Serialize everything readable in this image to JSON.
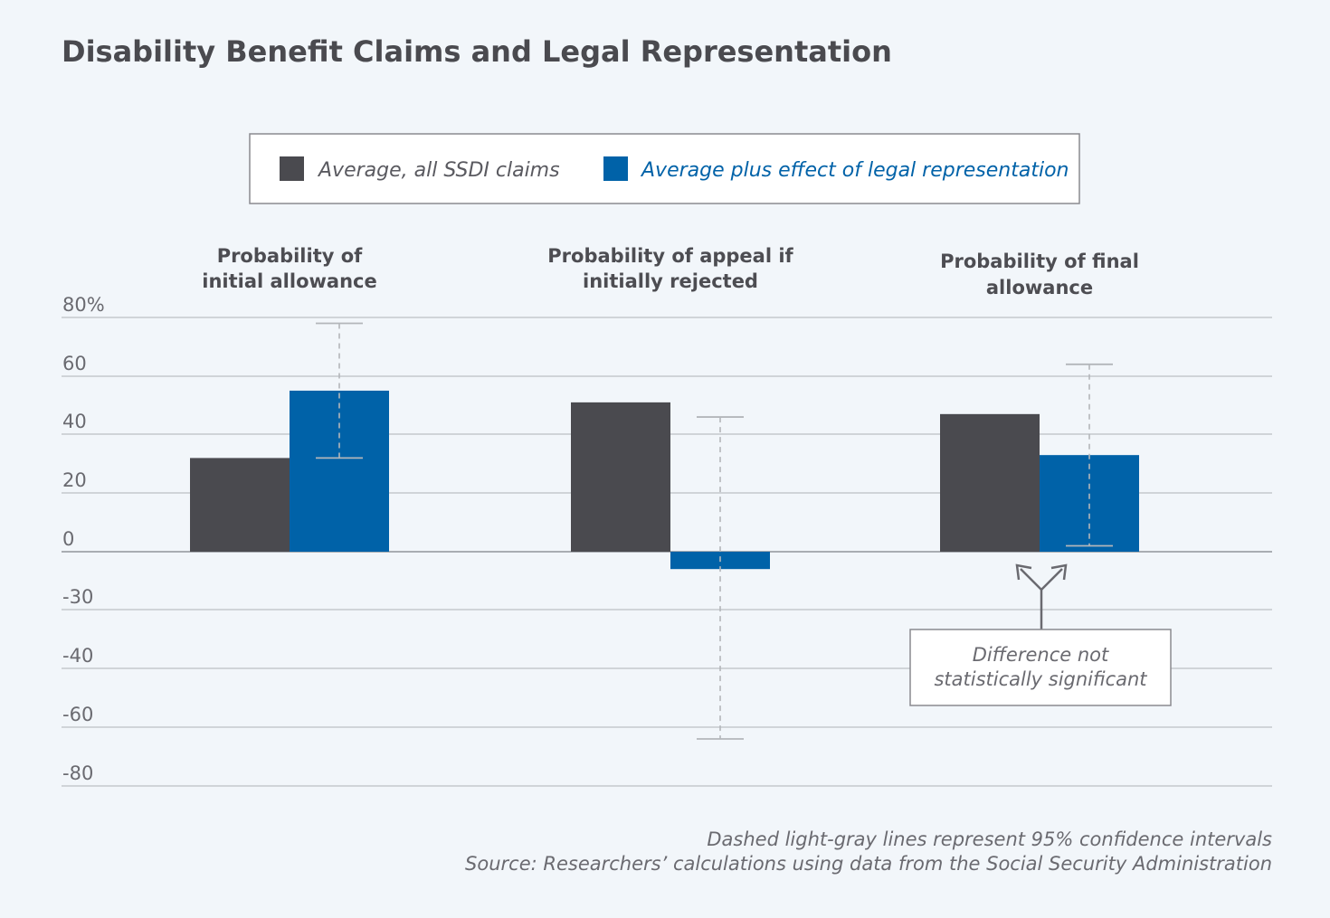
{
  "title": "Disability Benefit Claims and Legal Representation",
  "legend": {
    "items": [
      {
        "label": "Average, all SSDI claims",
        "color": "#4a4a4f"
      },
      {
        "label": "Average plus effect of legal representation",
        "color": "#0062a8"
      }
    ]
  },
  "annotation": {
    "line1": "Difference not",
    "line2": "statistically significant"
  },
  "footnote": {
    "line1": "Dashed light-gray lines represent 95% confidence intervals",
    "line2": "Source: Researchers’ calculations using data from the Social Security Administration"
  },
  "colors": {
    "average": "#4a4a4f",
    "legal": "#0062a8",
    "grid": "#c4c8cc",
    "ci": "#b3b6ba",
    "background": "#f2f6fa"
  },
  "chart_data": {
    "type": "bar",
    "ytick_labels": [
      "80%",
      "60",
      "40",
      "20",
      "0",
      "-30",
      "-40",
      "-60",
      "-80"
    ],
    "ylim": [
      -80,
      80
    ],
    "grid": true,
    "legend_position": "top-center",
    "categories": [
      [
        "Probability of",
        "initial allowance"
      ],
      [
        "Probability of appeal if",
        "initially rejected"
      ],
      [
        "Probability of final",
        "allowance"
      ]
    ],
    "series": [
      {
        "name": "Average, all SSDI claims",
        "values": [
          32,
          51,
          47
        ]
      },
      {
        "name": "Average plus effect of legal representation",
        "values": [
          55,
          -9,
          33
        ]
      }
    ],
    "confidence_intervals": [
      {
        "category": 0,
        "series": 1,
        "low": 32,
        "high": 78
      },
      {
        "category": 1,
        "series": 1,
        "low": -64,
        "high": 46
      },
      {
        "category": 2,
        "series": 1,
        "low": 2,
        "high": 64
      }
    ]
  }
}
